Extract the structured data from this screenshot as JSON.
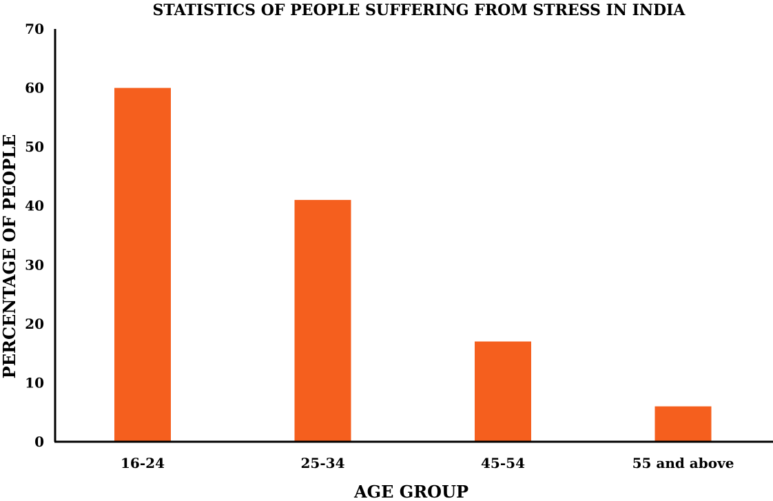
{
  "chart_data": {
    "type": "bar",
    "title": "STATISTICS OF PEOPLE SUFFERING FROM STRESS IN INDIA",
    "xlabel": "AGE GROUP",
    "ylabel": "PERCENTAGE OF PEOPLE",
    "categories": [
      "16-24",
      "25-34",
      "45-54",
      "55 and above"
    ],
    "values": [
      60,
      41,
      17,
      6
    ],
    "yticks": [
      "0",
      "10",
      "20",
      "30",
      "40",
      "50",
      "60",
      "70"
    ],
    "ylim": [
      0,
      70
    ],
    "bar_color": "#F55F1E",
    "grid": false,
    "legend": "none"
  }
}
